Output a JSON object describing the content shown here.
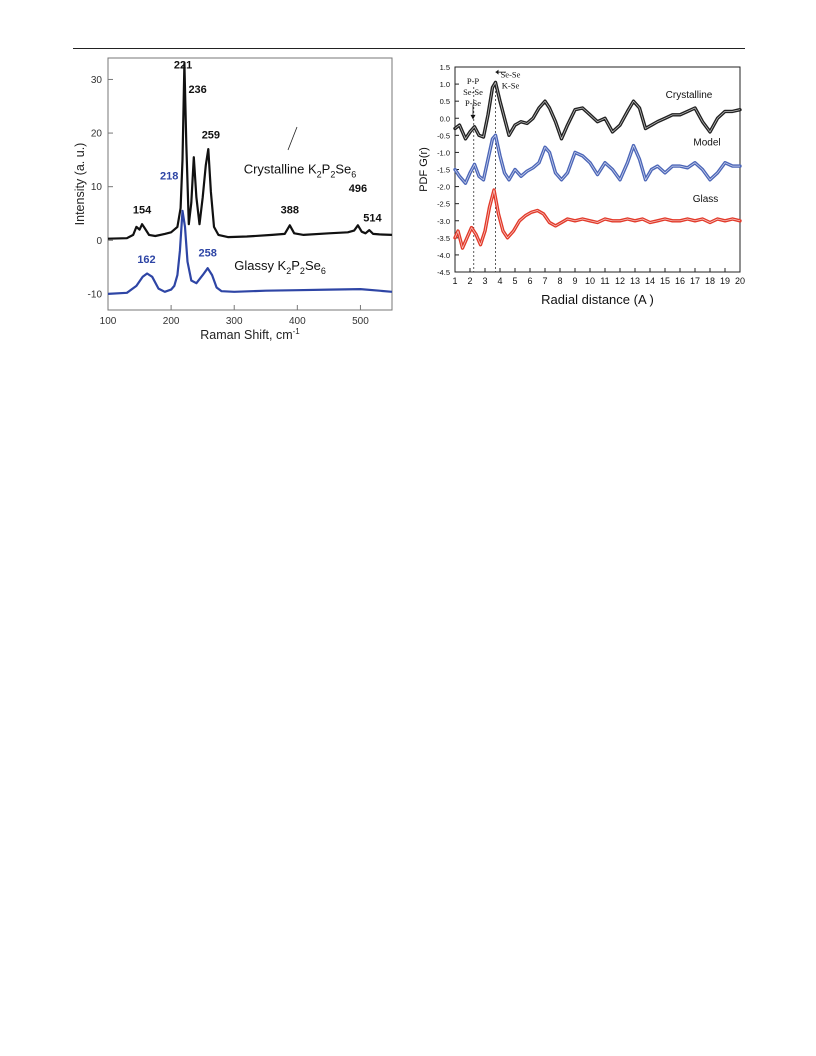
{
  "chart_data": [
    {
      "type": "line",
      "xlabel": "Raman Shift, cm",
      "xlabel_sup": "-1",
      "ylabel": "Intensity (a. u.)",
      "xlim": [
        100,
        550
      ],
      "ylim": [
        -13,
        34
      ],
      "xticks": [
        100,
        200,
        300,
        400,
        500
      ],
      "yticks": [
        -10,
        0,
        10,
        20,
        30
      ],
      "grid": false,
      "series": [
        {
          "color": "#111111",
          "x": [
            100,
            130,
            140,
            145,
            150,
            154,
            158,
            165,
            175,
            190,
            200,
            210,
            215,
            218,
            221,
            224,
            228,
            232,
            236,
            240,
            245,
            250,
            255,
            259,
            263,
            268,
            275,
            290,
            320,
            360,
            380,
            388,
            395,
            410,
            450,
            480,
            490,
            496,
            502,
            508,
            514,
            520,
            530,
            550
          ],
          "y": [
            0.3,
            0.4,
            1.0,
            2.5,
            2.0,
            3.0,
            2.3,
            1.0,
            0.8,
            1.2,
            1.5,
            2.5,
            6.0,
            15.0,
            33.0,
            18.0,
            3.0,
            7.0,
            15.5,
            8.0,
            3.0,
            8.0,
            14.0,
            17.0,
            9.0,
            2.5,
            1.0,
            0.6,
            0.7,
            1.0,
            1.2,
            2.8,
            1.3,
            1.0,
            1.3,
            1.5,
            1.8,
            2.8,
            1.6,
            1.3,
            1.9,
            1.2,
            1.1,
            1.0
          ]
        },
        {
          "color": "#2e45a5",
          "x": [
            100,
            130,
            145,
            155,
            162,
            170,
            180,
            190,
            200,
            205,
            210,
            214,
            218,
            222,
            226,
            232,
            240,
            250,
            258,
            265,
            272,
            280,
            300,
            350,
            400,
            450,
            500,
            530,
            550
          ],
          "y": [
            -10.0,
            -9.8,
            -8.5,
            -6.8,
            -6.2,
            -6.8,
            -9.0,
            -9.6,
            -9.2,
            -8.5,
            -6.5,
            -2.0,
            5.5,
            2.5,
            -4.0,
            -7.5,
            -8.0,
            -6.5,
            -5.2,
            -6.5,
            -8.8,
            -9.5,
            -9.6,
            -9.4,
            -9.3,
            -9.2,
            -9.1,
            -9.4,
            -9.6
          ]
        }
      ],
      "peak_labels": [
        {
          "x": 154,
          "y": 5.0,
          "text": "154",
          "color": "#111111"
        },
        {
          "x": 219,
          "y": 32.0,
          "text": "221",
          "color": "#111111"
        },
        {
          "x": 242,
          "y": 27.5,
          "text": "236",
          "color": "#111111"
        },
        {
          "x": 263,
          "y": 19.0,
          "text": "259",
          "color": "#111111"
        },
        {
          "x": 388,
          "y": 5.0,
          "text": "388",
          "color": "#111111"
        },
        {
          "x": 496,
          "y": 9.0,
          "text": "496",
          "color": "#111111"
        },
        {
          "x": 519,
          "y": 3.5,
          "text": "514",
          "color": "#111111"
        },
        {
          "x": 197,
          "y": 11.3,
          "text": "218",
          "color": "#2e45a5"
        },
        {
          "x": 161,
          "y": -4.2,
          "text": "162",
          "color": "#2e45a5"
        },
        {
          "x": 258,
          "y": -3.0,
          "text": "258",
          "color": "#2e45a5"
        }
      ],
      "annotations": [
        {
          "x": 315,
          "y": 12.5,
          "base": "Crystalline K",
          "sub1": "2",
          "mid": "P",
          "sub2": "2",
          "end": "Se",
          "sub3": "6",
          "color": "#111111"
        },
        {
          "x": 300,
          "y": -5.5,
          "base": "Glassy K",
          "sub1": "2",
          "mid": "P",
          "sub2": "2",
          "end": "Se",
          "sub3": "6",
          "color": "#111111"
        }
      ]
    },
    {
      "type": "line",
      "xlabel": "Radial distance (A )",
      "ylabel": "PDF G(r)",
      "xlim": [
        1,
        20
      ],
      "ylim": [
        -4.5,
        1.5
      ],
      "xticks": [
        1,
        2,
        3,
        4,
        5,
        6,
        7,
        8,
        9,
        10,
        11,
        12,
        13,
        14,
        15,
        16,
        17,
        18,
        19,
        20
      ],
      "yticks": [
        "1.5",
        "1.0",
        "0.5",
        "0.0",
        "-0.5",
        "-1.0",
        "-1.5",
        "-2.0",
        "-2.5",
        "-3.0",
        "-3.5",
        "-4.0",
        "-4.5"
      ],
      "grid": false,
      "series": [
        {
          "name": "Crystalline",
          "color": "#222222",
          "x": [
            1.0,
            1.3,
            1.7,
            2.0,
            2.3,
            2.6,
            2.9,
            3.2,
            3.5,
            3.7,
            4.0,
            4.3,
            4.6,
            5.0,
            5.4,
            5.8,
            6.2,
            6.6,
            7.0,
            7.3,
            7.7,
            8.1,
            8.5,
            9.0,
            9.5,
            10.0,
            10.5,
            11.0,
            11.5,
            12.0,
            12.5,
            12.9,
            13.3,
            13.7,
            14.1,
            14.5,
            15.0,
            15.5,
            16.0,
            16.5,
            17.0,
            17.5,
            18.0,
            18.5,
            19.0,
            19.5,
            20.0
          ],
          "y": [
            -0.3,
            -0.2,
            -0.6,
            -0.4,
            -0.25,
            -0.5,
            -0.55,
            0.1,
            0.9,
            1.05,
            0.5,
            0.0,
            -0.5,
            -0.2,
            -0.1,
            -0.15,
            0.0,
            0.3,
            0.5,
            0.3,
            -0.1,
            -0.6,
            -0.2,
            0.25,
            0.3,
            0.1,
            -0.1,
            0.0,
            -0.4,
            -0.2,
            0.2,
            0.5,
            0.3,
            -0.3,
            -0.2,
            -0.1,
            0.0,
            0.1,
            0.1,
            0.2,
            0.3,
            -0.1,
            -0.4,
            0.0,
            0.2,
            0.2,
            0.25
          ]
        },
        {
          "name": "Model",
          "color": "#4c66b8",
          "x": [
            1.0,
            1.3,
            1.7,
            2.0,
            2.3,
            2.6,
            2.9,
            3.2,
            3.5,
            3.7,
            4.0,
            4.3,
            4.6,
            5.0,
            5.4,
            5.8,
            6.2,
            6.6,
            7.0,
            7.3,
            7.7,
            8.1,
            8.5,
            9.0,
            9.5,
            10.0,
            10.5,
            11.0,
            11.5,
            12.0,
            12.5,
            12.9,
            13.3,
            13.7,
            14.1,
            14.5,
            15.0,
            15.5,
            16.0,
            16.5,
            17.0,
            17.5,
            18.0,
            18.5,
            19.0,
            19.5,
            20.0
          ],
          "y": [
            -1.5,
            -1.7,
            -1.9,
            -1.6,
            -1.35,
            -1.7,
            -1.8,
            -1.2,
            -0.6,
            -0.5,
            -1.1,
            -1.6,
            -1.8,
            -1.5,
            -1.7,
            -1.55,
            -1.45,
            -1.3,
            -0.85,
            -1.0,
            -1.6,
            -1.8,
            -1.6,
            -1.0,
            -1.1,
            -1.3,
            -1.65,
            -1.3,
            -1.5,
            -1.8,
            -1.3,
            -0.8,
            -1.2,
            -1.8,
            -1.5,
            -1.4,
            -1.6,
            -1.4,
            -1.4,
            -1.45,
            -1.3,
            -1.5,
            -1.8,
            -1.6,
            -1.3,
            -1.4,
            -1.4
          ]
        },
        {
          "name": "Glass",
          "color": "#e23a2a",
          "x": [
            1.0,
            1.2,
            1.5,
            1.8,
            2.1,
            2.4,
            2.7,
            3.0,
            3.3,
            3.6,
            3.9,
            4.2,
            4.5,
            4.9,
            5.3,
            5.7,
            6.1,
            6.5,
            6.9,
            7.3,
            7.7,
            8.1,
            8.5,
            9.0,
            9.5,
            10.0,
            10.5,
            11.0,
            11.5,
            12.0,
            12.5,
            13.0,
            13.5,
            14.0,
            14.5,
            15.0,
            15.5,
            16.0,
            16.5,
            17.0,
            17.5,
            18.0,
            18.5,
            19.0,
            19.5,
            20.0
          ],
          "y": [
            -3.5,
            -3.3,
            -3.8,
            -3.5,
            -3.2,
            -3.4,
            -3.7,
            -3.3,
            -2.6,
            -2.1,
            -2.8,
            -3.3,
            -3.5,
            -3.3,
            -3.0,
            -2.85,
            -2.75,
            -2.7,
            -2.8,
            -3.05,
            -3.15,
            -3.05,
            -2.95,
            -3.0,
            -2.95,
            -3.0,
            -3.05,
            -2.95,
            -3.0,
            -3.0,
            -2.95,
            -3.0,
            -2.95,
            -3.05,
            -3.0,
            -2.95,
            -3.0,
            -3.0,
            -2.95,
            -3.0,
            -2.95,
            -3.05,
            -2.95,
            -3.0,
            -2.95,
            -3.0
          ]
        }
      ],
      "series_labels": [
        {
          "x": 16.6,
          "y": 0.6,
          "text": "Crystalline"
        },
        {
          "x": 17.8,
          "y": -0.8,
          "text": "Model"
        },
        {
          "x": 17.7,
          "y": -2.45,
          "text": "Glass"
        }
      ],
      "vlines": [
        2.25,
        3.7
      ],
      "bond_labels": [
        {
          "x": 2.2,
          "y": 1.0,
          "lines": [
            "P-P",
            "Se-Se",
            "P-Se"
          ]
        },
        {
          "x": 4.7,
          "y": 1.2,
          "lines": [
            "Se-Se",
            "K-Se"
          ]
        }
      ]
    }
  ]
}
